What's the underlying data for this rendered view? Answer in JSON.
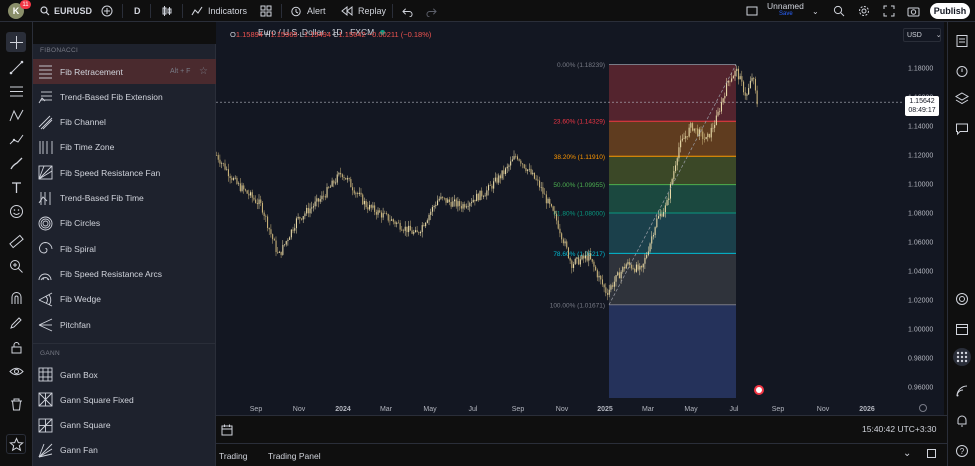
{
  "topbar": {
    "avatar_letter": "K",
    "notifications": "11",
    "symbol": "EURUSD",
    "interval": "D",
    "indicators_label": "Indicators",
    "alert_label": "Alert",
    "replay_label": "Replay",
    "layout_name": "Unnamed",
    "layout_status": "Save",
    "publish_label": "Publish"
  },
  "legend": {
    "title": "Euro / U.S. Dollar · 1D · FXCM",
    "o_label": "O",
    "o": "1.15894",
    "h_label": "H",
    "h": "1.15965",
    "l_label": "L",
    "l": "1.15494",
    "c_label": "C",
    "c": "1.15642",
    "change": "−0.00211 (−0.18%)"
  },
  "menu": {
    "section_fib": "FIBONACCI",
    "fib_items": [
      {
        "label": "Fib Retracement",
        "hotkey": "Alt + F",
        "icon": "fib-retracement-icon"
      },
      {
        "label": "Trend-Based Fib Extension",
        "icon": "fib-extension-icon"
      },
      {
        "label": "Fib Channel",
        "icon": "fib-channel-icon"
      },
      {
        "label": "Fib Time Zone",
        "icon": "fib-time-zone-icon"
      },
      {
        "label": "Fib Speed Resistance Fan",
        "icon": "fib-fan-icon"
      },
      {
        "label": "Trend-Based Fib Time",
        "icon": "fib-time-icon"
      },
      {
        "label": "Fib Circles",
        "icon": "fib-circles-icon"
      },
      {
        "label": "Fib Spiral",
        "icon": "fib-spiral-icon"
      },
      {
        "label": "Fib Speed Resistance Arcs",
        "icon": "fib-arcs-icon"
      },
      {
        "label": "Fib Wedge",
        "icon": "fib-wedge-icon"
      },
      {
        "label": "Pitchfan",
        "icon": "pitchfan-icon"
      }
    ],
    "section_gann": "GANN",
    "gann_items": [
      {
        "label": "Gann Box",
        "icon": "gann-box-icon"
      },
      {
        "label": "Gann Square Fixed",
        "icon": "gann-square-fixed-icon"
      },
      {
        "label": "Gann Square",
        "icon": "gann-square-icon"
      },
      {
        "label": "Gann Fan",
        "icon": "gann-fan-icon"
      }
    ]
  },
  "chart_data": {
    "type": "candlestick",
    "currency": "USD",
    "y_ticks": [
      "1.18000",
      "1.16000",
      "1.14000",
      "1.12000",
      "1.10000",
      "1.08000",
      "1.06000",
      "1.04000",
      "1.02000",
      "1.00000",
      "0.98000",
      "0.96000"
    ],
    "x_ticks": [
      "Sep",
      "Nov",
      "2024",
      "Mar",
      "May",
      "Jul",
      "Sep",
      "Nov",
      "2025",
      "Mar",
      "May",
      "Jul",
      "Sep",
      "Nov",
      "2026"
    ],
    "bold_x_ticks": [
      "2024",
      "2025",
      "2026"
    ],
    "current_price": "1.15642",
    "countdown": "08:49:17",
    "fib_levels": [
      {
        "label": "0.00% (1.18239)",
        "ratio": 0.0,
        "price": 1.18239,
        "color": "#787b86"
      },
      {
        "label": "23.60% (1.14329)",
        "ratio": 0.236,
        "price": 1.14329,
        "color": "#f23645"
      },
      {
        "label": "38.20% (1.11910)",
        "ratio": 0.382,
        "price": 1.1191,
        "color": "#ff9800"
      },
      {
        "label": "50.00% (1.09955)",
        "ratio": 0.5,
        "price": 1.09955,
        "color": "#4caf50"
      },
      {
        "label": "61.80% (1.08000)",
        "ratio": 0.618,
        "price": 1.08,
        "color": "#089981"
      },
      {
        "label": "78.60% (1.05217)",
        "ratio": 0.786,
        "price": 1.05217,
        "color": "#00bcd4"
      },
      {
        "label": "100.00% (1.01671)",
        "ratio": 1.0,
        "price": 1.01671,
        "color": "#787b86"
      }
    ]
  },
  "bottom": {
    "time": "15:40:42 UTC+3:30",
    "tab_trading": "Trading",
    "tab_panel": "Trading Panel"
  }
}
